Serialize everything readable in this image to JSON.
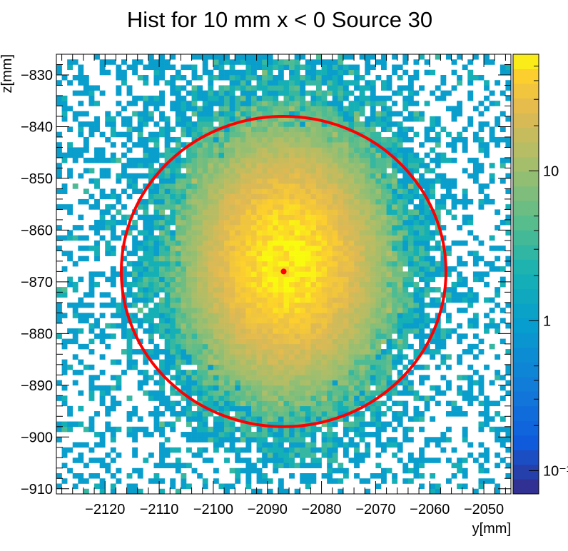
{
  "chart_data": {
    "type": "heatmap",
    "title": "Hist for 10 mm x < 0 Source 30",
    "xlabel": "y[mm]",
    "ylabel": "z[mm]",
    "xlim": [
      -2129,
      -2045
    ],
    "ylim": [
      -911,
      -826
    ],
    "x_ticks": [
      -2120,
      -2110,
      -2100,
      -2090,
      -2080,
      -2070,
      -2060,
      -2050
    ],
    "x_tick_labels": [
      "−2120",
      "−2110",
      "−2100",
      "−2090",
      "−2080",
      "−2070",
      "−2060",
      "−2050"
    ],
    "y_ticks": [
      -830,
      -840,
      -850,
      -860,
      -870,
      -880,
      -890,
      -900,
      -910
    ],
    "y_tick_labels": [
      "−830",
      "−840",
      "−850",
      "−860",
      "−870",
      "−880",
      "−890",
      "−900",
      "−910"
    ],
    "colorbar": {
      "scale": "log",
      "range": [
        0.07,
        60
      ],
      "ticks": [
        0.1,
        1,
        10
      ],
      "tick_labels": [
        "10⁻¹",
        "1",
        "10"
      ],
      "colormap": "parula-like"
    },
    "distribution": {
      "center_y": -2086.5,
      "center_z": -866,
      "peak_count": 55,
      "sigma_y": 9.5,
      "sigma_z": 13,
      "bin_width_mm": 1
    },
    "overlay_circle": {
      "center_y": -2087,
      "center_z": -868,
      "radius": 30,
      "color": "#ff0000"
    },
    "center_marker": {
      "y": -2087,
      "z": -868,
      "color": "#ff0000"
    }
  }
}
